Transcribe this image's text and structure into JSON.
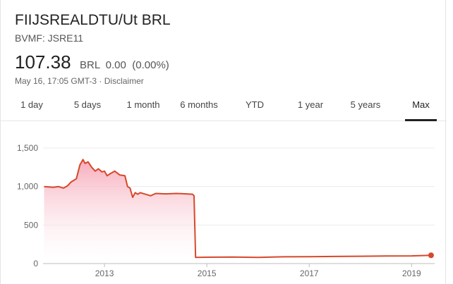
{
  "header": {
    "name": "FIIJSREALDTU/Ut BRL",
    "ticker": "BVMF: JSRE11",
    "price": "107.38",
    "currency": "BRL",
    "change": "0.00",
    "change_pct": "(0.00%)",
    "timestamp": "May 16, 17:05 GMT-3",
    "separator": "·",
    "disclaimer": "Disclaimer"
  },
  "tabs": [
    {
      "label": "1 day"
    },
    {
      "label": "5 days"
    },
    {
      "label": "1 month"
    },
    {
      "label": "6 months"
    },
    {
      "label": "YTD"
    },
    {
      "label": "1 year"
    },
    {
      "label": "5 years"
    },
    {
      "label": "Max"
    }
  ],
  "active_tab": "Max",
  "colors": {
    "line": "#d6482a",
    "fill_top": "#f6a3b4",
    "fill_bottom": "#ffffff",
    "grid": "#ececec",
    "axis_text": "#666666"
  },
  "chart_data": {
    "type": "area",
    "title": "",
    "xlabel": "",
    "ylabel": "",
    "xlim": [
      2011.8,
      2019.45
    ],
    "ylim": [
      0,
      1500
    ],
    "y_ticks": [
      0,
      500,
      1000,
      1500
    ],
    "y_tick_labels": [
      "0",
      "500",
      "1,000",
      "1,500"
    ],
    "x_ticks": [
      2013,
      2015,
      2017,
      2019
    ],
    "x_tick_labels": [
      "2013",
      "2015",
      "2017",
      "2019"
    ],
    "grid": true,
    "series": [
      {
        "x": [
          2011.82,
          2012.0,
          2012.1,
          2012.2,
          2012.28,
          2012.35,
          2012.45,
          2012.52,
          2012.58,
          2012.62,
          2012.68,
          2012.75,
          2012.82,
          2012.88,
          2012.95,
          2013.0,
          2013.05,
          2013.12,
          2013.2,
          2013.3,
          2013.4,
          2013.45,
          2013.5,
          2013.55,
          2013.6,
          2013.65,
          2013.7,
          2013.8,
          2013.9,
          2014.0,
          2014.2,
          2014.4,
          2014.6,
          2014.72,
          2014.75,
          2014.78,
          2015.0,
          2015.5,
          2016.0,
          2016.5,
          2017.0,
          2017.5,
          2018.0,
          2018.5,
          2019.0,
          2019.38
        ],
        "y": [
          1000,
          990,
          1000,
          980,
          1010,
          1060,
          1100,
          1280,
          1350,
          1300,
          1320,
          1250,
          1200,
          1230,
          1190,
          1200,
          1140,
          1170,
          1200,
          1150,
          1140,
          1000,
          980,
          860,
          920,
          900,
          920,
          900,
          880,
          910,
          905,
          910,
          905,
          900,
          880,
          80,
          82,
          85,
          80,
          88,
          90,
          92,
          95,
          98,
          100,
          107.38
        ]
      }
    ],
    "last_point": {
      "x": 2019.38,
      "y": 107.38
    }
  }
}
